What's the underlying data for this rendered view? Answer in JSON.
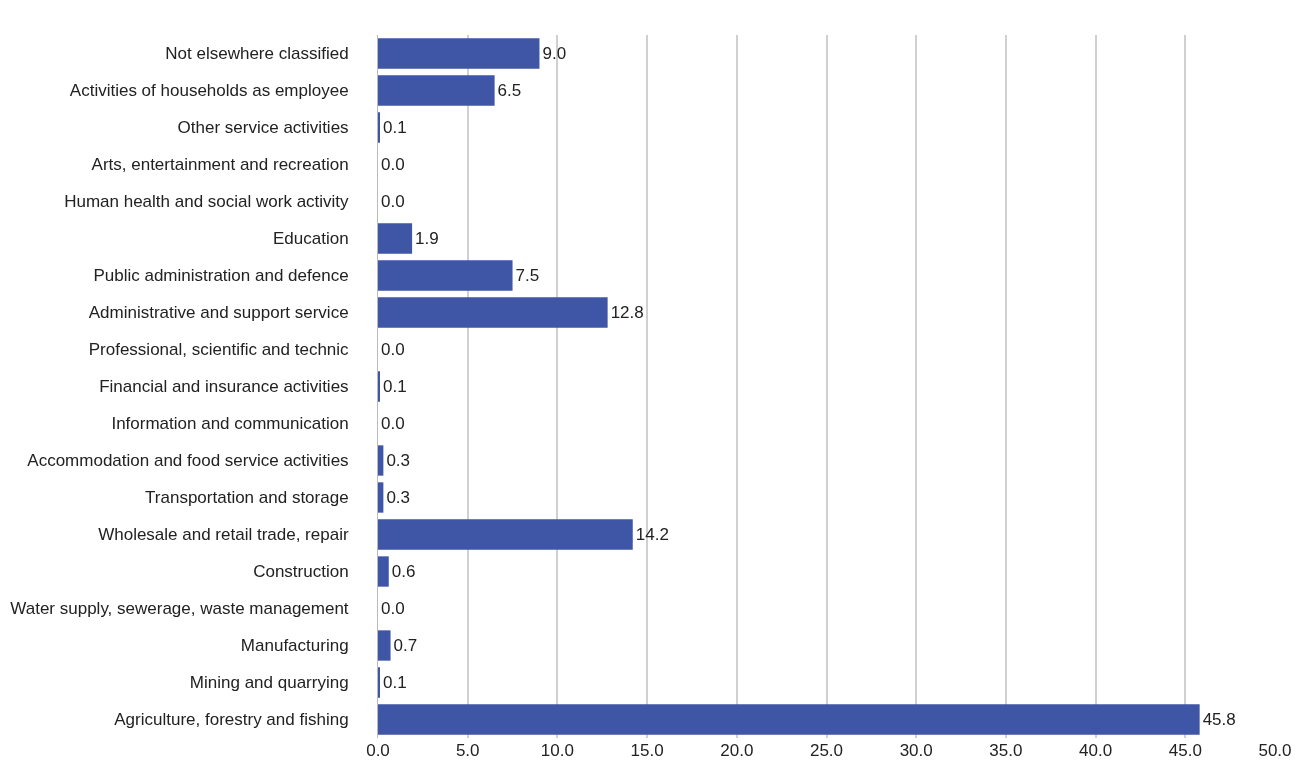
{
  "chart_data": {
    "type": "bar",
    "orientation": "horizontal",
    "categories": [
      "Not elsewhere classified",
      "Activities of households as employee",
      "Other service activities",
      "Arts, entertainment and recreation",
      "Human health and social work activity",
      "Education",
      "Public administration and defence",
      "Administrative and support service",
      "Professional, scientific and technic",
      "Financial and insurance activities",
      "Information and communication",
      "Accommodation and food service activities",
      "Transportation and storage",
      "Wholesale and retail trade, repair",
      "Construction",
      "Water supply, sewerage, waste management",
      "Manufacturing",
      "Mining and quarrying",
      "Agriculture, forestry and fishing"
    ],
    "values": [
      9.0,
      6.5,
      0.1,
      0.0,
      0.0,
      1.9,
      7.5,
      12.8,
      0.0,
      0.1,
      0.0,
      0.3,
      0.3,
      14.2,
      0.6,
      0.0,
      0.7,
      0.1,
      45.8
    ],
    "value_labels": [
      "9.0",
      "6.5",
      "0.1",
      "0.0",
      "0.0",
      "1.9",
      "7.5",
      "12.8",
      "0.0",
      "0.1",
      "0.0",
      "0.3",
      "0.3",
      "14.2",
      "0.6",
      "0.0",
      "0.7",
      "0.1",
      "45.8"
    ],
    "color": "#3f55a5",
    "xlim": [
      0,
      50
    ],
    "xticks": [
      {
        "value": 0,
        "label": "0.0"
      },
      {
        "value": 5,
        "label": "5.0"
      },
      {
        "value": 10,
        "label": "10.0"
      },
      {
        "value": 15,
        "label": "15.0"
      },
      {
        "value": 20,
        "label": "20.0"
      },
      {
        "value": 25,
        "label": "25.0"
      },
      {
        "value": 30,
        "label": "30.0"
      },
      {
        "value": 35,
        "label": "35.0"
      },
      {
        "value": 40,
        "label": "40.0"
      },
      {
        "value": 45,
        "label": "45.0"
      },
      {
        "value": 50,
        "label": "50.0"
      }
    ],
    "grid": "x",
    "legend": false
  }
}
